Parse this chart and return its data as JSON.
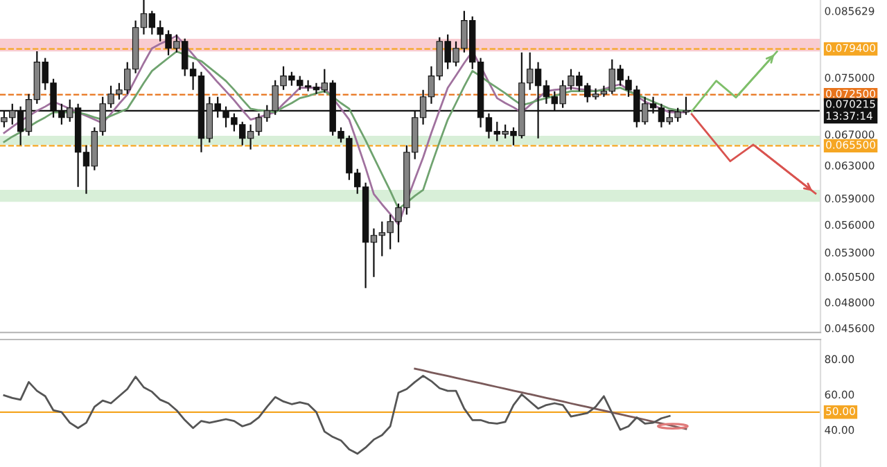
{
  "chart_data": [
    {
      "type": "candlestick",
      "ylim": [
        0.0452,
        0.0875
      ],
      "log": true,
      "tick_labels": "y",
      "grid": false,
      "legend": false,
      "categories": [
        null,
        null,
        null,
        null,
        null,
        null,
        null,
        null,
        null,
        null,
        null,
        null,
        null,
        null,
        null,
        null,
        null,
        null,
        null,
        null,
        null,
        null,
        null,
        null,
        null,
        null,
        null,
        null,
        null,
        null,
        null,
        null,
        null,
        null,
        null,
        null,
        null,
        null,
        null,
        null,
        null,
        null,
        null,
        null,
        null,
        null,
        null,
        null,
        null,
        null,
        null,
        null,
        null,
        null,
        null,
        null,
        null,
        null,
        null,
        null,
        null,
        null,
        null,
        null,
        null,
        null,
        null,
        null,
        null,
        null,
        null,
        null,
        null,
        null,
        null,
        null,
        null,
        null,
        null,
        null,
        null,
        null,
        null,
        null
      ],
      "yticks": [
        {
          "value": 0.085629,
          "label": "0.085629"
        },
        {
          "value": 0.075,
          "label": "0.075000"
        },
        {
          "value": 0.067,
          "label": "0.067000"
        },
        {
          "value": 0.063,
          "label": "0.063000"
        },
        {
          "value": 0.059,
          "label": "0.059000"
        },
        {
          "value": 0.056,
          "label": "0.056000"
        },
        {
          "value": 0.053,
          "label": "0.053000"
        },
        {
          "value": 0.0505,
          "label": "0.050500"
        },
        {
          "value": 0.048,
          "label": "0.048000"
        },
        {
          "value": 0.0456,
          "label": "0.045600"
        }
      ],
      "bands": [
        {
          "axis": "y",
          "from": 0.079,
          "to": 0.081,
          "color": "#f7b6bd"
        },
        {
          "axis": "y",
          "from": 0.0656,
          "to": 0.0668,
          "color": "#c8e8c8"
        },
        {
          "axis": "y",
          "from": 0.0586,
          "to": 0.06,
          "color": "#c8e8c8"
        }
      ],
      "ref_lines": [
        {
          "axis": "y",
          "value": 0.0794,
          "label": "0.079400",
          "color": "#f5a623",
          "line_style": "dashed"
        },
        {
          "axis": "y",
          "value": 0.0725,
          "label": "0.072500",
          "color": "#e8741c",
          "line_style": "dashed"
        },
        {
          "axis": "y",
          "value": 0.070215,
          "label": "0.070215\n13:37:14",
          "color": "#111111",
          "line_style": "solid"
        },
        {
          "axis": "y",
          "value": 0.0655,
          "label": "0.065500",
          "color": "#f5a623",
          "line_style": "dashed"
        }
      ],
      "series": [
        {
          "color": "#111111",
          "ohlc": [
            [
              0.0687,
              0.07023,
              0.06795,
              0.06927
            ],
            [
              0.06927,
              0.0712,
              0.06832,
              0.07023
            ],
            [
              0.07023,
              0.07082,
              0.06556,
              0.0674
            ],
            [
              0.0674,
              0.07259,
              0.06684,
              0.0718
            ],
            [
              0.0718,
              0.07903,
              0.0712,
              0.07734
            ],
            [
              0.07734,
              0.07798,
              0.07319,
              0.0742
            ],
            [
              0.0742,
              0.07482,
              0.06927,
              0.07023
            ],
            [
              0.07023,
              0.0712,
              0.06832,
              0.06927
            ],
            [
              0.06927,
              0.0718,
              0.0687,
              0.07062
            ],
            [
              0.07062,
              0.0712,
              0.06036,
              0.06466
            ],
            [
              0.06466,
              0.06556,
              0.05954,
              0.0629
            ],
            [
              0.0629,
              0.06794,
              0.06239,
              0.0674
            ],
            [
              0.0674,
              0.07219,
              0.06684,
              0.0712
            ],
            [
              0.0712,
              0.0738,
              0.07062,
              0.07259
            ],
            [
              0.07259,
              0.0742,
              0.0718,
              0.07319
            ],
            [
              0.07319,
              0.07734,
              0.07259,
              0.07628
            ],
            [
              0.07628,
              0.084,
              0.07565,
              0.08284
            ],
            [
              0.08284,
              0.08754,
              0.08171,
              0.08516
            ],
            [
              0.08516,
              0.08563,
              0.08171,
              0.08284
            ],
            [
              0.08284,
              0.084,
              0.08059,
              0.08171
            ],
            [
              0.08171,
              0.08239,
              0.0784,
              0.07949
            ],
            [
              0.07949,
              0.08171,
              0.07884,
              0.08059
            ],
            [
              0.08059,
              0.08104,
              0.07524,
              0.07628
            ],
            [
              0.07628,
              0.07734,
              0.07319,
              0.07524
            ],
            [
              0.07524,
              0.07586,
              0.06466,
              0.06647
            ],
            [
              0.06647,
              0.07219,
              0.06593,
              0.0712
            ],
            [
              0.0712,
              0.07219,
              0.06927,
              0.07023
            ],
            [
              0.07023,
              0.07082,
              0.06794,
              0.06927
            ],
            [
              0.06927,
              0.06985,
              0.0674,
              0.06832
            ],
            [
              0.06832,
              0.0687,
              0.06556,
              0.06647
            ],
            [
              0.06647,
              0.06832,
              0.06502,
              0.0674
            ],
            [
              0.0674,
              0.06985,
              0.06684,
              0.06927
            ],
            [
              0.06927,
              0.07101,
              0.0687,
              0.07023
            ],
            [
              0.07023,
              0.07461,
              0.06965,
              0.0738
            ],
            [
              0.0738,
              0.0767,
              0.07319,
              0.07524
            ],
            [
              0.07524,
              0.07586,
              0.0738,
              0.07461
            ],
            [
              0.07461,
              0.07524,
              0.07319,
              0.0738
            ],
            [
              0.0738,
              0.07461,
              0.07299,
              0.0736
            ],
            [
              0.0736,
              0.0742,
              0.07259,
              0.07319
            ],
            [
              0.07319,
              0.07628,
              0.07279,
              0.0742
            ],
            [
              0.0742,
              0.07461,
              0.06684,
              0.0674
            ],
            [
              0.0674,
              0.06794,
              0.06593,
              0.06647
            ],
            [
              0.06647,
              0.06684,
              0.0612,
              0.06205
            ],
            [
              0.06205,
              0.06256,
              0.05954,
              0.06036
            ],
            [
              0.06036,
              0.06087,
              0.04937,
              0.05407
            ],
            [
              0.05407,
              0.05558,
              0.05047,
              0.05482
            ],
            [
              0.05482,
              0.05635,
              0.0526,
              0.05512
            ],
            [
              0.05512,
              0.05713,
              0.05333,
              0.05635
            ],
            [
              0.05635,
              0.0584,
              0.05407,
              0.05792
            ],
            [
              0.05792,
              0.06556,
              0.05713,
              0.06466
            ],
            [
              0.06466,
              0.07023,
              0.06378,
              0.06927
            ],
            [
              0.06927,
              0.07319,
              0.06832,
              0.07219
            ],
            [
              0.07219,
              0.0767,
              0.0712,
              0.07524
            ],
            [
              0.07524,
              0.08126,
              0.07461,
              0.08059
            ],
            [
              0.08059,
              0.08171,
              0.07628,
              0.07734
            ],
            [
              0.07734,
              0.08059,
              0.0767,
              0.07949
            ],
            [
              0.07949,
              0.08563,
              0.07884,
              0.084
            ],
            [
              0.084,
              0.08469,
              0.07628,
              0.07734
            ],
            [
              0.07734,
              0.07798,
              0.06794,
              0.06927
            ],
            [
              0.06927,
              0.06985,
              0.06647,
              0.0674
            ],
            [
              0.0674,
              0.0687,
              0.06611,
              0.06703
            ],
            [
              0.06703,
              0.06832,
              0.06647,
              0.0674
            ],
            [
              0.0674,
              0.06794,
              0.06556,
              0.06684
            ],
            [
              0.06684,
              0.07884,
              0.06647,
              0.0742
            ],
            [
              0.0742,
              0.07884,
              0.07319,
              0.07628
            ],
            [
              0.07628,
              0.07734,
              0.06647,
              0.0738
            ],
            [
              0.0738,
              0.07461,
              0.0712,
              0.07219
            ],
            [
              0.07219,
              0.07299,
              0.07023,
              0.0712
            ],
            [
              0.0712,
              0.07461,
              0.07062,
              0.0738
            ],
            [
              0.0738,
              0.07628,
              0.07319,
              0.07524
            ],
            [
              0.07524,
              0.07586,
              0.07299,
              0.0738
            ],
            [
              0.0738,
              0.0742,
              0.0714,
              0.07219
            ],
            [
              0.07219,
              0.0734,
              0.0718,
              0.07259
            ],
            [
              0.07259,
              0.0738,
              0.07219,
              0.07299
            ],
            [
              0.07299,
              0.07776,
              0.07259,
              0.07628
            ],
            [
              0.07628,
              0.07691,
              0.0738,
              0.07461
            ],
            [
              0.07461,
              0.07524,
              0.07219,
              0.07319
            ],
            [
              0.07319,
              0.0738,
              0.06794,
              0.0687
            ],
            [
              0.0687,
              0.07219,
              0.06832,
              0.0712
            ],
            [
              0.0712,
              0.07219,
              0.06985,
              0.07062
            ],
            [
              0.07062,
              0.0712,
              0.06794,
              0.0687
            ],
            [
              0.0687,
              0.07023,
              0.06832,
              0.06927
            ],
            [
              0.06927,
              0.07062,
              0.0687,
              0.07004
            ],
            [
              0.07004,
              0.07219,
              0.06965,
              0.07023
            ]
          ]
        },
        {
          "type": "line",
          "color": "#a0719e",
          "values": [
            0.0672,
            0.068,
            0.0688,
            0.0695,
            0.0702,
            0.0708,
            0.0715,
            0.071,
            0.0705,
            0.07,
            0.0695,
            0.069,
            0.0685,
            0.0698,
            0.0712,
            0.0725,
            0.0748,
            0.0772,
            0.0795,
            0.0802,
            0.0808,
            0.0815,
            0.08,
            0.0785,
            0.077,
            0.0757,
            0.0743,
            0.073,
            0.0717,
            0.0703,
            0.069,
            0.0693,
            0.0697,
            0.07,
            0.0712,
            0.0723,
            0.0735,
            0.0735,
            0.0735,
            0.0735,
            0.072,
            0.0705,
            0.069,
            0.0658,
            0.0627,
            0.0595,
            0.0583,
            0.0572,
            0.056,
            0.0587,
            0.0613,
            0.064,
            0.0672,
            0.0703,
            0.0735,
            0.0753,
            0.0772,
            0.079,
            0.0767,
            0.0743,
            0.072,
            0.0713,
            0.0707,
            0.07,
            0.071,
            0.072,
            0.073,
            0.0732,
            0.0733,
            0.0735,
            0.0733,
            0.0732,
            0.073,
            0.0733,
            0.0737,
            0.074,
            0.0732,
            0.0723,
            0.0715,
            0.071,
            0.0705,
            0.07,
            0.07,
            0.07
          ]
        },
        {
          "type": "line",
          "color": "#6fa36f",
          "values": [
            0.066,
            0.0667,
            0.0673,
            0.068,
            0.0687,
            0.0693,
            0.07,
            0.07,
            0.07,
            0.07,
            0.0697,
            0.0693,
            0.069,
            0.0695,
            0.07,
            0.0705,
            0.0723,
            0.0742,
            0.076,
            0.077,
            0.078,
            0.079,
            0.0785,
            0.078,
            0.0775,
            0.0765,
            0.0755,
            0.0745,
            0.0732,
            0.0718,
            0.0705,
            0.0703,
            0.0702,
            0.07,
            0.0707,
            0.0713,
            0.072,
            0.0723,
            0.0727,
            0.073,
            0.0722,
            0.0713,
            0.0705,
            0.0683,
            0.0662,
            0.064,
            0.0619,
            0.0599,
            0.0578,
            0.0585,
            0.0593,
            0.06,
            0.063,
            0.066,
            0.069,
            0.0713,
            0.0737,
            0.076,
            0.0752,
            0.0743,
            0.0735,
            0.0727,
            0.0718,
            0.071,
            0.0713,
            0.0717,
            0.072,
            0.0723,
            0.0727,
            0.073,
            0.073,
            0.073,
            0.073,
            0.0732,
            0.0733,
            0.0735,
            0.073,
            0.0725,
            0.072,
            0.0715,
            0.071,
            0.0705,
            0.0703,
            0.0702
          ]
        }
      ]
    },
    {
      "type": "line",
      "ylim": [
        19,
        91
      ],
      "tick_labels": "y",
      "grid": false,
      "legend": false,
      "categories": [
        null,
        null,
        null,
        null,
        null,
        null,
        null,
        null,
        null,
        null,
        null,
        null,
        null,
        null,
        null,
        null,
        null,
        null,
        null,
        null,
        null,
        null,
        null,
        null,
        null,
        null,
        null,
        null,
        null,
        null,
        null,
        null,
        null,
        null,
        null,
        null,
        null,
        null,
        null,
        null,
        null,
        null,
        null,
        null,
        null,
        null,
        null,
        null,
        null,
        null,
        null,
        null,
        null,
        null,
        null,
        null,
        null,
        null,
        null,
        null,
        null,
        null,
        null,
        null,
        null,
        null,
        null,
        null,
        null,
        null,
        null,
        null,
        null,
        null,
        null,
        null,
        null,
        null,
        null,
        null,
        null,
        null,
        null,
        null
      ],
      "yticks": [
        {
          "value": 40,
          "label": "40.00"
        },
        {
          "value": 60,
          "label": "60.00"
        },
        {
          "value": 80,
          "label": "80.00"
        }
      ],
      "ref_lines": [
        {
          "axis": "y",
          "value": 50,
          "label": "50.00",
          "color": "#f5a623",
          "line_style": "solid"
        }
      ],
      "series": [
        {
          "color": "#7a5a5a",
          "values": [
            null,
            null,
            null,
            null,
            null,
            null,
            null,
            null,
            null,
            null,
            null,
            null,
            null,
            null,
            null,
            null,
            null,
            null,
            null,
            null,
            null,
            null,
            null,
            null,
            null,
            null,
            null,
            null,
            null,
            null,
            null,
            null,
            null,
            null,
            null,
            null,
            null,
            null,
            null,
            null,
            null,
            null,
            null,
            null,
            null,
            null,
            null,
            null,
            null,
            null,
            74.5,
            73.5,
            72.4,
            71.4,
            70.4,
            69.3,
            68.3,
            67.3,
            66.3,
            65.2,
            64.2,
            63.2,
            62.1,
            61.1,
            60.1,
            59.1,
            58.0,
            57.0,
            56.0,
            54.9,
            53.9,
            52.9,
            51.8,
            50.8,
            49.8,
            48.8,
            47.7,
            46.7,
            45.7,
            44.6,
            43.6,
            42.6,
            41.5,
            40.5
          ]
        },
        {
          "color": "#555555",
          "values": [
            59.5,
            58,
            57,
            67,
            62,
            59,
            51,
            50,
            44,
            41,
            44,
            53,
            56.5,
            55,
            59,
            63,
            70,
            64,
            61.5,
            57,
            55,
            51,
            45.5,
            41,
            45,
            44,
            45,
            46,
            45,
            42,
            43.5,
            47,
            53,
            58.5,
            56,
            54.5,
            55.5,
            54.5,
            50,
            39,
            36,
            34,
            29,
            26.5,
            30,
            34.5,
            37,
            42,
            61,
            63,
            67,
            70.5,
            67.5,
            63.5,
            62,
            62,
            52,
            45.5,
            45.5,
            44,
            43.5,
            44.5,
            54,
            60,
            56,
            52,
            54,
            55,
            54,
            47.5,
            48.5,
            49.5,
            53,
            59,
            49.5,
            40,
            42,
            47,
            43.5,
            44,
            46.5,
            47.8,
            null,
            null
          ]
        }
      ]
    }
  ]
}
